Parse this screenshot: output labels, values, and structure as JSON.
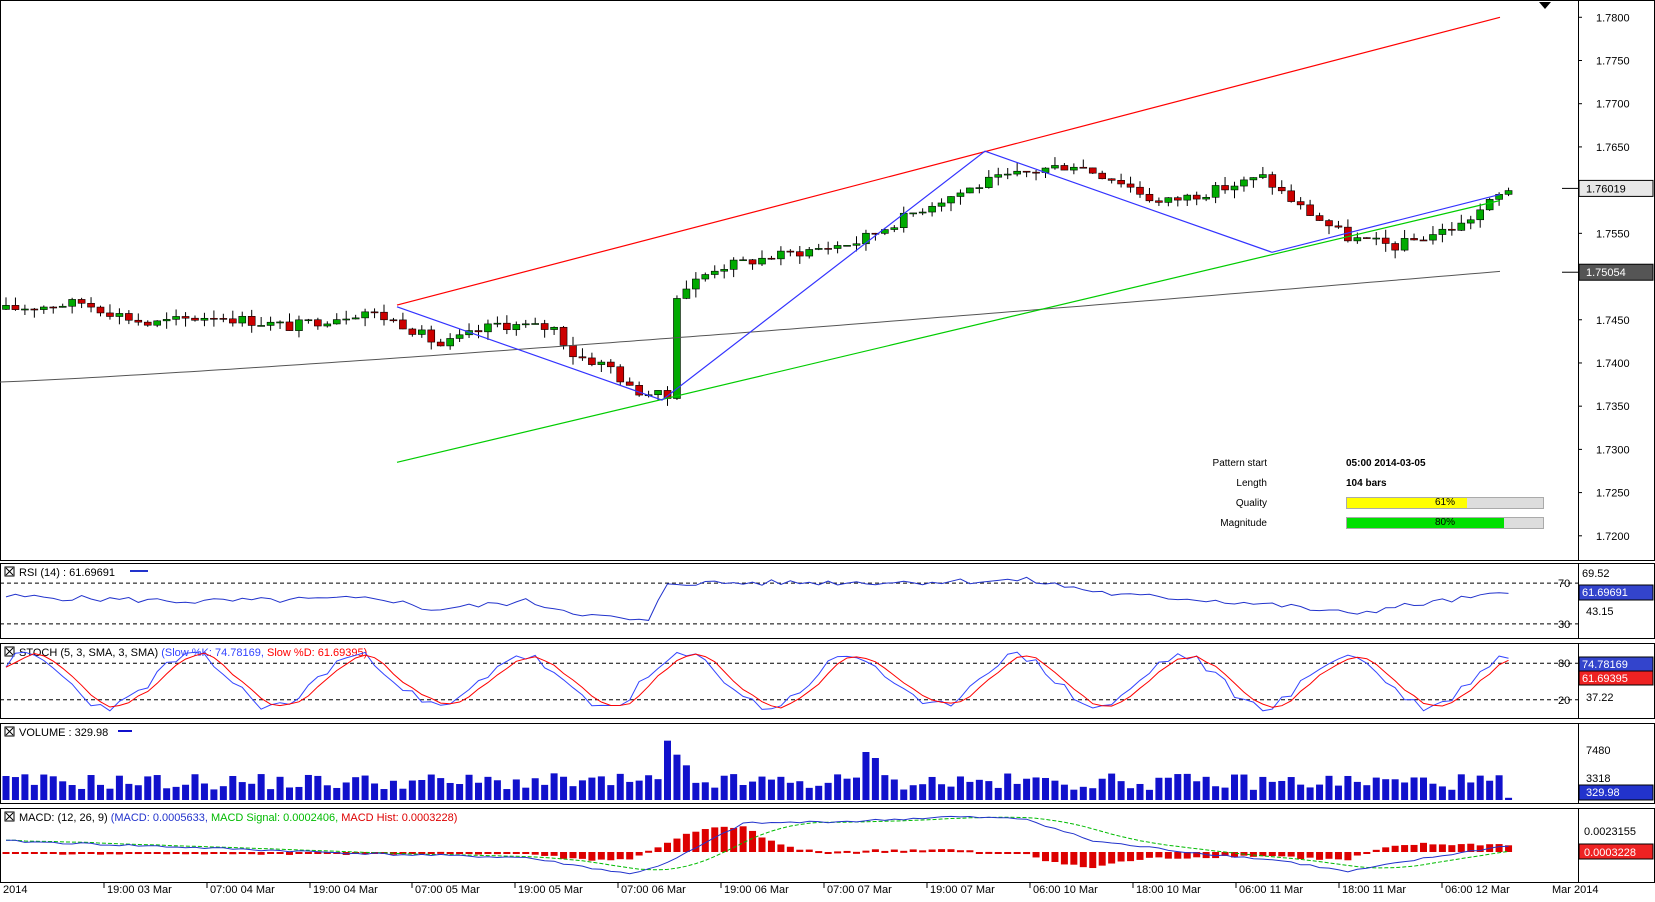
{
  "chart_data": [
    {
      "panel": "price",
      "type": "candlestick",
      "symbol": "",
      "y_ticks": [
        "1.7800",
        "1.7750",
        "1.7700",
        "1.7650",
        "1.7600",
        "1.7550",
        "1.7500",
        "1.7450",
        "1.7400",
        "1.7350",
        "1.7300",
        "1.7250",
        "1.7200"
      ],
      "ylim": [
        1.7172,
        1.782
      ],
      "last_price_label": "1.76019",
      "ma_price_label": "1.75054",
      "trendlines": {
        "resistance": [
          [
            "05:00 2014-03-05",
            1.7467
          ],
          [
            "12 Mar",
            1.78
          ]
        ],
        "support": [
          [
            "05:00 2014-03-05",
            1.7285
          ],
          [
            "12 Mar",
            1.7588
          ]
        ],
        "zigzag": [
          1.7465,
          1.7357,
          1.7645,
          1.7528,
          1.7595
        ]
      },
      "pattern": {
        "start_label": "Pattern start",
        "start_value": "05:00 2014-03-05",
        "length_label": "Length",
        "length_value": "104 bars",
        "quality_label": "Quality",
        "quality_value": "61%",
        "quality": 0.61,
        "magnitude_label": "Magnitude",
        "magnitude_value": "80%",
        "magnitude": 0.8
      }
    },
    {
      "panel": "rsi",
      "type": "line",
      "title": "RSI (14) : 61.69691",
      "levels": [
        "70",
        "30"
      ],
      "right_labels": [
        "69.52",
        "43.15"
      ],
      "last_label": "61.69691"
    },
    {
      "panel": "stoch",
      "type": "line",
      "title_main": "STOCH (5, 3, SMA, 3, SMA)",
      "title_k": "(Slow %K: 74.78169,",
      "title_d": "Slow %D: 61.69395)",
      "levels": [
        "80",
        "20"
      ],
      "right_labels": [
        "74.78169",
        "37.22"
      ],
      "last_label": "61.69395"
    },
    {
      "panel": "volume",
      "type": "bar",
      "title": "VOLUME : 329.98",
      "right_labels": [
        "7480",
        "3318"
      ],
      "last_label": "329.98"
    },
    {
      "panel": "macd",
      "type": "line",
      "title_main": "MACD: (12, 26, 9)",
      "title_macd": "(MACD: 0.0005633,",
      "title_signal": "MACD Signal: 0.0002406,",
      "title_hist": "MACD Hist: 0.0003228)",
      "right_labels": [
        "0.0023155"
      ],
      "last_label": "0.0003228"
    }
  ],
  "x_axis_labels": [
    "2014",
    "19:00 03 Mar",
    "07:00 04 Mar",
    "19:00 04 Mar",
    "07:00 05 Mar",
    "19:00 05 Mar",
    "07:00 06 Mar",
    "19:00 06 Mar",
    "07:00 07 Mar",
    "19:00 07 Mar",
    "06:00 10 Mar",
    "18:00 10 Mar",
    "06:00 11 Mar",
    "18:00 11 Mar",
    "06:00 12 Mar",
    "Mar 2014"
  ],
  "colors": {
    "bull": "#00aa00",
    "bear": "#cc0000",
    "resistance": "#ff0000",
    "support": "#00cc00",
    "zigzag": "#3333ff",
    "ma": "#555555",
    "rsi": "#2233cc",
    "stoch_k": "#3344ff",
    "stoch_d": "#ff0000",
    "volume": "#1111cc",
    "macd": "#2233cc",
    "signal": "#00bb00",
    "hist": "#dd0000",
    "quality": "#ffff00",
    "magnitude": "#00e000"
  }
}
